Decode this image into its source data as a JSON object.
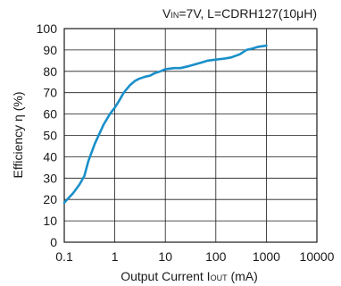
{
  "chart_data": {
    "type": "line",
    "annotation": {
      "v_main": "V",
      "v_sub": "IN",
      "rest": "=7V, L=CDRH127(10μH)"
    },
    "xlabel": {
      "main": "Output Current I",
      "sub": "OUT",
      "unit": " (mA)"
    },
    "ylabel": "Efficiency η (%)",
    "x_scale": "log",
    "xlim": [
      0.1,
      10000
    ],
    "ylim": [
      0,
      100
    ],
    "x_ticks": [
      0.1,
      1,
      10,
      100,
      1000,
      10000
    ],
    "x_tick_labels": [
      "0.1",
      "1",
      "10",
      "100",
      "1000",
      "10000"
    ],
    "y_ticks": [
      0,
      10,
      20,
      30,
      40,
      50,
      60,
      70,
      80,
      90,
      100
    ],
    "y_tick_labels": [
      "0",
      "10",
      "20",
      "30",
      "40",
      "50",
      "60",
      "70",
      "80",
      "90",
      "100"
    ],
    "grid": true,
    "line_color": "#1a8fc9",
    "series": [
      {
        "x": [
          0.1,
          0.15,
          0.2,
          0.25,
          0.3,
          0.4,
          0.5,
          0.6,
          0.8,
          1.0,
          1.2,
          1.5,
          2,
          2.5,
          3,
          4,
          5,
          6,
          8,
          10,
          15,
          20,
          30,
          50,
          70,
          100,
          150,
          200,
          300,
          400,
          500,
          700,
          1000
        ],
        "y": [
          18.5,
          23,
          27,
          31,
          38,
          46,
          51,
          55,
          60,
          63,
          66,
          70,
          73.5,
          75.5,
          76.5,
          77.5,
          78,
          79,
          80,
          81,
          81.5,
          81.5,
          82.5,
          84,
          85,
          85.5,
          86,
          86.5,
          88,
          90,
          90.5,
          91.5,
          92
        ]
      }
    ]
  }
}
